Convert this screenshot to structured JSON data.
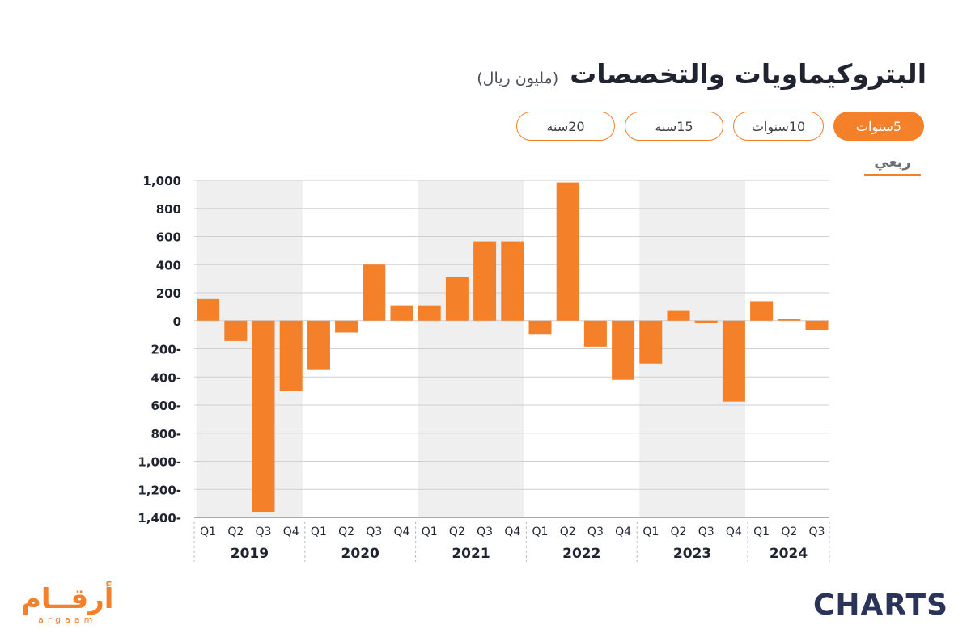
{
  "header": {
    "title": "البتروكيماويات والتخصصات",
    "unit": "(مليون ريال)"
  },
  "tabs": [
    {
      "label": "5سنوات",
      "active": true
    },
    {
      "label": "10سنوات",
      "active": false
    },
    {
      "label": "15سنة",
      "active": false
    },
    {
      "label": "20سنة",
      "active": false
    }
  ],
  "frequency": {
    "label": "ربعي"
  },
  "colors": {
    "bar": "#f4812a",
    "band": "#efeff0",
    "grid": "#cfcfd2",
    "text": "#1f2430"
  },
  "chart_data": {
    "type": "bar",
    "title": "البتروكيماويات والتخصصات",
    "ylim": [
      -1400,
      1000
    ],
    "yticks": [
      1000,
      800,
      600,
      400,
      200,
      0,
      -200,
      -400,
      -600,
      -800,
      -1000,
      -1200,
      -1400
    ],
    "ytick_labels": [
      "1,000",
      "800",
      "600",
      "400",
      "200",
      "0",
      "200-",
      "400-",
      "600-",
      "800-",
      "1,000-",
      "1,200-",
      "1,400-"
    ],
    "grid": true,
    "groups": [
      {
        "year": "2019",
        "quarters": [
          "Q1",
          "Q2",
          "Q3",
          "Q4"
        ],
        "values": [
          155,
          -145,
          -1360,
          -500
        ]
      },
      {
        "year": "2020",
        "quarters": [
          "Q1",
          "Q2",
          "Q3",
          "Q4"
        ],
        "values": [
          -345,
          -85,
          400,
          110
        ]
      },
      {
        "year": "2021",
        "quarters": [
          "Q1",
          "Q2",
          "Q3",
          "Q4"
        ],
        "values": [
          110,
          310,
          565,
          565
        ]
      },
      {
        "year": "2022",
        "quarters": [
          "Q1",
          "Q2",
          "Q3",
          "Q4"
        ],
        "values": [
          -95,
          985,
          -185,
          -420
        ]
      },
      {
        "year": "2023",
        "quarters": [
          "Q1",
          "Q2",
          "Q3",
          "Q4"
        ],
        "values": [
          -305,
          70,
          -15,
          -575
        ]
      },
      {
        "year": "2024",
        "quarters": [
          "Q1",
          "Q2",
          "Q3"
        ],
        "values": [
          140,
          12,
          -65
        ]
      }
    ]
  },
  "logos": {
    "left_ar": "أرقــام",
    "left_en": "argaam",
    "right": "CHARTS"
  }
}
